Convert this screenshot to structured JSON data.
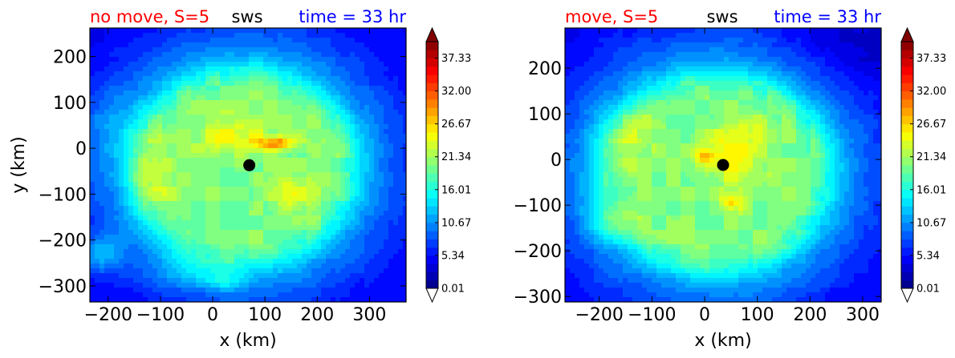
{
  "chart_data": [
    {
      "type": "heatmap",
      "title_left": "no move, S=5",
      "title_center": "sws",
      "title_right": "time = 33 hr",
      "title_colors": {
        "left": "#ff0000",
        "center": "#000000",
        "right": "#0000ff"
      },
      "xlabel": "x (km)",
      "ylabel": "y (km)",
      "xlim": [
        -235,
        370
      ],
      "ylim": [
        -335,
        262
      ],
      "xticks": [
        -200,
        -100,
        0,
        100,
        200,
        300
      ],
      "xtick_labels": [
        "−200",
        "−100",
        "0",
        "100",
        "200",
        "300"
      ],
      "yticks": [
        -300,
        -200,
        -100,
        0,
        100,
        200
      ],
      "ytick_labels": [
        "−300",
        "−200",
        "−100",
        "0",
        "100",
        "200"
      ],
      "center_marker": {
        "x": 70,
        "y": -37
      },
      "colorbar": {
        "min": 0.01,
        "max": 40.0,
        "extend": "both",
        "ticks": [
          0.01,
          5.34,
          10.67,
          16.01,
          21.34,
          26.67,
          32.0,
          37.33
        ],
        "tick_labels": [
          "0.01",
          "5.34",
          "10.67",
          "16.01",
          "21.34",
          "26.67",
          "32.00",
          "37.33"
        ]
      },
      "field": {
        "background": 4.5,
        "cx": 60,
        "cy": -40,
        "ring_radius": 245,
        "ring_width": 95,
        "ring_value": 4.5,
        "core_radius": 210,
        "core_value": 15,
        "hotspots": [
          {
            "x": 120,
            "y": 10,
            "sx": 35,
            "sy": 15,
            "v": 10
          },
          {
            "x": 40,
            "y": 20,
            "sx": 70,
            "sy": 40,
            "v": 5
          },
          {
            "x": 150,
            "y": -100,
            "sx": 40,
            "sy": 40,
            "v": 4
          },
          {
            "x": -120,
            "y": -50,
            "sx": 40,
            "sy": 90,
            "v": 4
          },
          {
            "x": -210,
            "y": -230,
            "sx": 40,
            "sy": 40,
            "v": 6
          },
          {
            "x": 20,
            "y": -290,
            "sx": 40,
            "sy": 20,
            "v": 4
          },
          {
            "x": -40,
            "y": -260,
            "sx": 70,
            "sy": 40,
            "v": 3
          },
          {
            "x": -200,
            "y": 60,
            "sx": 60,
            "sy": 80,
            "v": 2
          }
        ]
      }
    },
    {
      "type": "heatmap",
      "title_left": "move, S=5",
      "title_center": "sws",
      "title_right": "time = 33 hr",
      "title_colors": {
        "left": "#ff0000",
        "center": "#000000",
        "right": "#0000ff"
      },
      "xlabel": "x (km)",
      "ylabel": "",
      "xlim": [
        -265,
        335
      ],
      "ylim": [
        -312,
        288
      ],
      "xticks": [
        -200,
        -100,
        0,
        100,
        200,
        300
      ],
      "xtick_labels": [
        "−200",
        "−100",
        "0",
        "100",
        "200",
        "300"
      ],
      "yticks": [
        -300,
        -200,
        -100,
        0,
        100,
        200
      ],
      "ytick_labels": [
        "−300",
        "−200",
        "−100",
        "0",
        "100",
        "200"
      ],
      "center_marker": {
        "x": 35,
        "y": -12
      },
      "colorbar": {
        "min": 0.01,
        "max": 40.0,
        "extend": "both",
        "ticks": [
          0.01,
          5.34,
          10.67,
          16.01,
          21.34,
          26.67,
          32.0,
          37.33
        ],
        "tick_labels": [
          "0.01",
          "5.34",
          "10.67",
          "16.01",
          "21.34",
          "26.67",
          "32.00",
          "37.33"
        ]
      },
      "field": {
        "background": 4.5,
        "cx": 20,
        "cy": -30,
        "ring_radius": 250,
        "ring_width": 95,
        "ring_value": 4.5,
        "core_radius": 215,
        "core_value": 15,
        "hotspots": [
          {
            "x": 50,
            "y": 0,
            "sx": 60,
            "sy": 60,
            "v": 5
          },
          {
            "x": 0,
            "y": 5,
            "sx": 20,
            "sy": 15,
            "v": 6
          },
          {
            "x": 50,
            "y": -95,
            "sx": 20,
            "sy": 20,
            "v": 7
          },
          {
            "x": -180,
            "y": -140,
            "sx": 45,
            "sy": 40,
            "v": 5
          },
          {
            "x": -150,
            "y": 50,
            "sx": 60,
            "sy": 60,
            "v": 3
          },
          {
            "x": 70,
            "y": 60,
            "sx": 50,
            "sy": 30,
            "v": 3
          },
          {
            "x": 280,
            "y": 250,
            "sx": 120,
            "sy": 80,
            "v": -2
          }
        ]
      }
    }
  ]
}
